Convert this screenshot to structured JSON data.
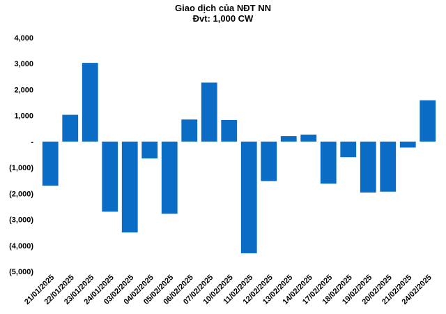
{
  "chart_data": {
    "type": "bar",
    "title": "Giao dịch của NĐT NN",
    "subtitle": "Đvt: 1,000 CW",
    "xlabel": "",
    "ylabel": "",
    "ylim": [
      -5000,
      4000
    ],
    "y_ticks": [
      4000,
      3000,
      2000,
      1000,
      0,
      -1000,
      -2000,
      -3000,
      -4000,
      -5000
    ],
    "y_tick_labels": [
      "4,000",
      "3,000",
      "2,000",
      "1,000",
      "-",
      "(1,000)",
      "(2,000)",
      "(3,000)",
      "(4,000)",
      "(5,000)"
    ],
    "grid": false,
    "legend": "none",
    "bar_color": "#0a6cc4",
    "categories": [
      "21/01/2025",
      "22/01/2025",
      "23/01/2025",
      "24/01/2025",
      "03/02/2025",
      "04/02/2025",
      "05/02/2025",
      "06/02/2025",
      "07/02/2025",
      "10/02/2025",
      "11/02/2025",
      "12/02/2025",
      "13/02/2025",
      "14/02/2025",
      "17/02/2025",
      "18/02/2025",
      "19/02/2025",
      "20/02/2025",
      "21/02/2025",
      "24/02/2025"
    ],
    "values": [
      -1700,
      1030,
      3030,
      -2700,
      -3500,
      -650,
      -2780,
      850,
      2270,
      830,
      -4300,
      -1520,
      210,
      270,
      -1620,
      -600,
      -1960,
      -1930,
      -230,
      1590
    ]
  }
}
